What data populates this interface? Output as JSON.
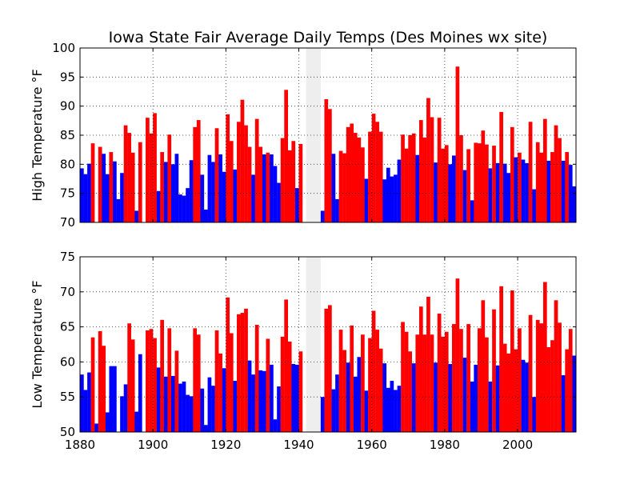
{
  "chart_data": {
    "type": "bar",
    "title": "Iowa State Fair Average Daily Temps (Des Moines wx site)",
    "colors": {
      "warm": "#ff0000",
      "cool": "#0000ff",
      "gap": "#eeeeee"
    },
    "gap_years": [
      1942,
      1946
    ],
    "x": {
      "range": [
        1880,
        2016
      ],
      "ticks": [
        1880,
        1900,
        1920,
        1940,
        1960,
        1980,
        2000
      ],
      "tick_labels": [
        "1880",
        "1900",
        "1920",
        "1940",
        "1960",
        "1980",
        "2000"
      ]
    },
    "grid": true,
    "years": [
      1880,
      1881,
      1882,
      1883,
      1884,
      1885,
      1886,
      1887,
      1888,
      1889,
      1890,
      1891,
      1892,
      1893,
      1894,
      1895,
      1896,
      1897,
      1898,
      1899,
      1900,
      1901,
      1902,
      1903,
      1904,
      1905,
      1906,
      1907,
      1908,
      1909,
      1910,
      1911,
      1912,
      1913,
      1914,
      1915,
      1916,
      1917,
      1918,
      1919,
      1920,
      1921,
      1922,
      1923,
      1924,
      1925,
      1926,
      1927,
      1928,
      1929,
      1930,
      1931,
      1932,
      1933,
      1934,
      1935,
      1936,
      1937,
      1938,
      1939,
      1940,
      1941,
      1942,
      1943,
      1944,
      1945,
      1946,
      1947,
      1948,
      1949,
      1950,
      1951,
      1952,
      1953,
      1954,
      1955,
      1956,
      1957,
      1958,
      1959,
      1960,
      1961,
      1962,
      1963,
      1964,
      1965,
      1966,
      1967,
      1968,
      1969,
      1970,
      1971,
      1972,
      1973,
      1974,
      1975,
      1976,
      1977,
      1978,
      1979,
      1980,
      1981,
      1982,
      1983,
      1984,
      1985,
      1986,
      1987,
      1988,
      1989,
      1990,
      1991,
      1992,
      1993,
      1994,
      1995,
      1996,
      1997,
      1998,
      1999,
      2000,
      2001,
      2002,
      2003,
      2004,
      2005,
      2006,
      2007,
      2008,
      2009,
      2010,
      2011,
      2012,
      2013,
      2014,
      2015
    ],
    "panels": [
      {
        "ylabel": "High Temperature $^\\circ$F",
        "ylim": [
          70,
          100
        ],
        "yticks": [
          70,
          75,
          80,
          85,
          90,
          95,
          100
        ],
        "ytick_labels": [
          "70",
          "75",
          "80",
          "85",
          "90",
          "95",
          "100"
        ],
        "values": [
          79.3,
          78.3,
          80.1,
          83.6,
          70.0,
          83.0,
          81.8,
          78.3,
          82.1,
          80.5,
          74.0,
          78.5,
          86.7,
          85.4,
          82.0,
          72.0,
          83.8,
          70.0,
          88.0,
          85.3,
          88.8,
          75.4,
          82.1,
          80.4,
          85.1,
          80.0,
          81.8,
          74.8,
          74.6,
          75.9,
          80.7,
          86.4,
          87.6,
          78.2,
          72.2,
          81.6,
          80.4,
          86.2,
          81.7,
          78.7,
          88.6,
          84.0,
          79.1,
          87.3,
          91.1,
          86.7,
          83.0,
          78.2,
          87.8,
          83.0,
          81.7,
          82.0,
          81.7,
          79.7,
          76.8,
          84.5,
          92.8,
          82.4,
          84.0,
          75.9,
          83.5,
          70.0,
          70.0,
          70.0,
          70.0,
          70.0,
          72.0,
          91.2,
          89.5,
          81.8,
          74.0,
          82.3,
          81.9,
          86.4,
          87.0,
          85.4,
          84.6,
          82.9,
          77.5,
          85.6,
          88.7,
          87.3,
          85.6,
          77.4,
          79.4,
          77.9,
          78.2,
          80.8,
          85.1,
          82.7,
          85.0,
          85.3,
          81.6,
          87.6,
          84.6,
          91.4,
          88.1,
          80.3,
          88.0,
          82.7,
          83.3,
          80.0,
          81.5,
          96.8,
          85.0,
          79.0,
          82.6,
          73.8,
          83.7,
          83.6,
          85.8,
          83.4,
          79.3,
          83.2,
          80.2,
          89.0,
          80.1,
          78.5,
          86.4,
          81.2,
          82.0,
          80.8,
          80.2,
          87.3,
          75.7,
          83.8,
          82.0,
          87.8,
          80.6,
          82.1,
          86.7,
          84.5,
          80.6,
          82.1,
          79.9,
          76.2
        ]
      },
      {
        "ylabel": "Low Temperature $^\\circ$F",
        "ylim": [
          50,
          75
        ],
        "yticks": [
          50,
          55,
          60,
          65,
          70,
          75
        ],
        "ytick_labels": [
          "50",
          "55",
          "60",
          "65",
          "70",
          "75"
        ],
        "values": [
          58.2,
          56.0,
          58.5,
          63.5,
          51.2,
          64.4,
          62.3,
          52.8,
          59.4,
          59.4,
          50.0,
          55.1,
          56.8,
          65.5,
          63.2,
          52.9,
          61.1,
          50.0,
          64.5,
          64.7,
          63.4,
          59.2,
          66.0,
          57.9,
          64.8,
          58.0,
          61.6,
          56.9,
          57.2,
          55.3,
          55.1,
          64.8,
          63.9,
          56.2,
          51.0,
          57.8,
          56.6,
          64.5,
          61.2,
          59.1,
          69.2,
          64.1,
          57.3,
          66.8,
          67.0,
          67.6,
          60.2,
          58.2,
          65.3,
          58.8,
          58.7,
          63.3,
          59.6,
          51.8,
          56.5,
          63.6,
          68.9,
          62.9,
          59.7,
          59.6,
          61.5,
          50.0,
          50.0,
          50.0,
          50.0,
          50.0,
          55.0,
          67.6,
          68.1,
          56.1,
          58.2,
          64.6,
          61.7,
          59.9,
          65.2,
          57.9,
          60.7,
          63.9,
          55.9,
          63.4,
          67.3,
          64.6,
          61.9,
          59.8,
          56.3,
          57.3,
          56.0,
          56.6,
          65.7,
          64.3,
          61.5,
          59.8,
          63.9,
          67.9,
          63.9,
          69.3,
          63.9,
          59.9,
          66.9,
          63.6,
          64.3,
          59.7,
          65.4,
          71.9,
          64.7,
          60.6,
          65.4,
          57.2,
          59.6,
          64.8,
          68.8,
          63.5,
          57.2,
          67.5,
          59.5,
          70.8,
          62.6,
          61.2,
          70.2,
          61.8,
          64.8,
          60.3,
          59.9,
          66.7,
          55.0,
          66.0,
          65.5,
          71.4,
          62.1,
          63.1,
          68.8,
          65.6,
          58.1,
          61.8,
          64.7,
          60.9
        ]
      }
    ]
  }
}
